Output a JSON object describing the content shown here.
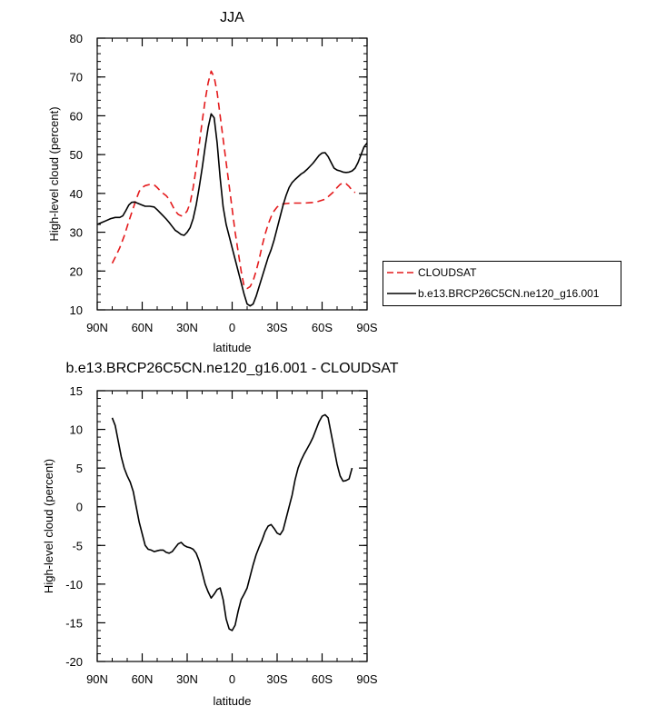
{
  "chart_data": [
    {
      "type": "line",
      "title": "JJA",
      "xlabel": "latitude",
      "ylabel": "High-level cloud (percent)",
      "xlim": [
        90,
        -90
      ],
      "ylim": [
        10,
        80
      ],
      "x_ticks": [
        90,
        60,
        30,
        0,
        -30,
        -60,
        -90
      ],
      "x_tick_labels": [
        "90N",
        "60N",
        "30N",
        "0",
        "30S",
        "60S",
        "90S"
      ],
      "y_ticks": [
        10,
        20,
        30,
        40,
        50,
        60,
        70,
        80
      ],
      "y_tick_labels": [
        "10",
        "20",
        "30",
        "40",
        "50",
        "60",
        "70",
        "80"
      ],
      "legend_position": "right",
      "series": [
        {
          "name": "CLOUDSAT",
          "color": "#e41a1c",
          "dash": "dashed",
          "x": [
            80,
            78,
            75,
            72,
            70,
            67,
            64,
            62,
            60,
            58,
            55,
            52,
            50,
            48,
            46,
            44,
            42,
            40,
            38,
            36,
            34,
            32,
            30,
            28,
            26,
            24,
            22,
            20,
            18,
            16,
            14,
            12,
            10,
            8,
            6,
            4,
            2,
            0,
            -2,
            -4,
            -6,
            -8,
            -10,
            -12,
            -14,
            -16,
            -18,
            -20,
            -22,
            -24,
            -26,
            -28,
            -30,
            -33,
            -36,
            -40,
            -44,
            -48,
            -52,
            -55,
            -58,
            -62,
            -65,
            -68,
            -70,
            -72,
            -74,
            -76,
            -78,
            -80,
            -82
          ],
          "values": [
            22,
            23.5,
            26,
            29,
            31.5,
            35,
            38.5,
            40.5,
            41.5,
            42,
            42.3,
            42.2,
            41.5,
            40.7,
            40,
            39.4,
            38.5,
            37,
            35.5,
            34.6,
            34.2,
            34.5,
            35.5,
            37.5,
            41.5,
            46.5,
            52.5,
            58.5,
            64,
            68.5,
            71.5,
            70,
            66,
            60,
            54,
            48,
            42,
            36,
            30,
            25,
            20,
            16,
            15.5,
            16,
            17.5,
            20,
            23,
            26.5,
            29.5,
            32,
            34,
            35.5,
            36.5,
            37.2,
            37.4,
            37.5,
            37.5,
            37.5,
            37.6,
            37.7,
            38,
            38.5,
            39.5,
            40.5,
            41.5,
            42.3,
            42.7,
            42.5,
            41.8,
            40.8,
            40.2
          ]
        },
        {
          "name": "b.e13.BRCP26C5CN.ne120_g16.001",
          "color": "#000000",
          "dash": "solid",
          "x": [
            90,
            87,
            84,
            81,
            78,
            75,
            73,
            71,
            69,
            67,
            65,
            62,
            60,
            58,
            55,
            52,
            50,
            48,
            46,
            44,
            42,
            40,
            38,
            36,
            34,
            32,
            30,
            28,
            26,
            24,
            22,
            20,
            18,
            16,
            14,
            12,
            10,
            8,
            6,
            4,
            2,
            0,
            -2,
            -4,
            -6,
            -8,
            -10,
            -12,
            -14,
            -16,
            -18,
            -20,
            -22,
            -24,
            -26,
            -28,
            -30,
            -32,
            -34,
            -36,
            -38,
            -40,
            -42,
            -44,
            -46,
            -48,
            -50,
            -52,
            -54,
            -56,
            -58,
            -60,
            -62,
            -64,
            -66,
            -68,
            -70,
            -72,
            -74,
            -76,
            -78,
            -80,
            -82,
            -84,
            -86,
            -88,
            -90
          ],
          "values": [
            32,
            32.5,
            33,
            33.5,
            33.8,
            33.8,
            34.2,
            35.5,
            37,
            37.7,
            37.8,
            37.3,
            37,
            36.7,
            36.7,
            36.5,
            35.8,
            35,
            34.2,
            33.4,
            32.5,
            31.5,
            30.5,
            30,
            29.4,
            29.2,
            30,
            31.2,
            33.5,
            37,
            41.5,
            46.5,
            52,
            57,
            60.5,
            59.5,
            53,
            44,
            36.5,
            32,
            29,
            26,
            23,
            20,
            17,
            14,
            11.5,
            11,
            11.5,
            13.5,
            16,
            18.5,
            21,
            23.5,
            25.5,
            28,
            31,
            34,
            37,
            39.5,
            41.5,
            42.8,
            43.6,
            44.3,
            45,
            45.5,
            46.2,
            47,
            47.8,
            48.8,
            49.8,
            50.4,
            50.5,
            49.5,
            48,
            46.5,
            46,
            45.8,
            45.5,
            45.4,
            45.5,
            45.8,
            46.5,
            48,
            50,
            52,
            53
          ]
        }
      ]
    },
    {
      "type": "line",
      "title": "b.e13.BRCP26C5CN.ne120_g16.001 - CLOUDSAT",
      "xlabel": "latitude",
      "ylabel": "High-level cloud (percent)",
      "xlim": [
        90,
        -90
      ],
      "ylim": [
        -20,
        15
      ],
      "x_ticks": [
        90,
        60,
        30,
        0,
        -30,
        -60,
        -90
      ],
      "x_tick_labels": [
        "90N",
        "60N",
        "30N",
        "0",
        "30S",
        "60S",
        "90S"
      ],
      "y_ticks": [
        -20,
        -15,
        -10,
        -5,
        0,
        5,
        10,
        15
      ],
      "y_tick_labels": [
        "-20",
        "-15",
        "-10",
        "-5",
        "0",
        "5",
        "10",
        "15"
      ],
      "series": [
        {
          "color": "#000000",
          "dash": "solid",
          "x": [
            80,
            78,
            76,
            74,
            72,
            70,
            68,
            66,
            64,
            62,
            60,
            58,
            56,
            54,
            52,
            50,
            48,
            46,
            44,
            42,
            40,
            38,
            36,
            34,
            32,
            30,
            28,
            26,
            24,
            22,
            20,
            18,
            16,
            14,
            12,
            10,
            8,
            6,
            4,
            2,
            0,
            -2,
            -4,
            -6,
            -8,
            -10,
            -12,
            -14,
            -16,
            -18,
            -20,
            -22,
            -24,
            -26,
            -28,
            -30,
            -32,
            -34,
            -36,
            -38,
            -40,
            -42,
            -44,
            -46,
            -48,
            -50,
            -52,
            -54,
            -56,
            -58,
            -60,
            -62,
            -64,
            -66,
            -68,
            -70,
            -72,
            -74,
            -76,
            -78,
            -80
          ],
          "values": [
            11.5,
            10.5,
            8.5,
            6.5,
            5,
            4,
            3.2,
            2,
            0,
            -2,
            -3.5,
            -5,
            -5.5,
            -5.6,
            -5.8,
            -5.7,
            -5.6,
            -5.6,
            -5.9,
            -6,
            -5.8,
            -5.3,
            -4.8,
            -4.6,
            -5,
            -5.2,
            -5.3,
            -5.5,
            -6,
            -7,
            -8.5,
            -10,
            -11,
            -11.8,
            -11.3,
            -10.7,
            -10.5,
            -12,
            -14.5,
            -15.8,
            -16,
            -15.3,
            -13.5,
            -12,
            -11.3,
            -10.5,
            -9,
            -7.5,
            -6.2,
            -5.2,
            -4.3,
            -3.2,
            -2.5,
            -2.3,
            -2.8,
            -3.4,
            -3.6,
            -3,
            -1.5,
            0,
            1.5,
            3.5,
            5,
            6,
            6.8,
            7.5,
            8.2,
            9,
            10,
            11,
            11.7,
            11.9,
            11.5,
            9.5,
            7.5,
            5.5,
            4,
            3.3,
            3.4,
            3.6,
            5
          ]
        }
      ]
    }
  ]
}
